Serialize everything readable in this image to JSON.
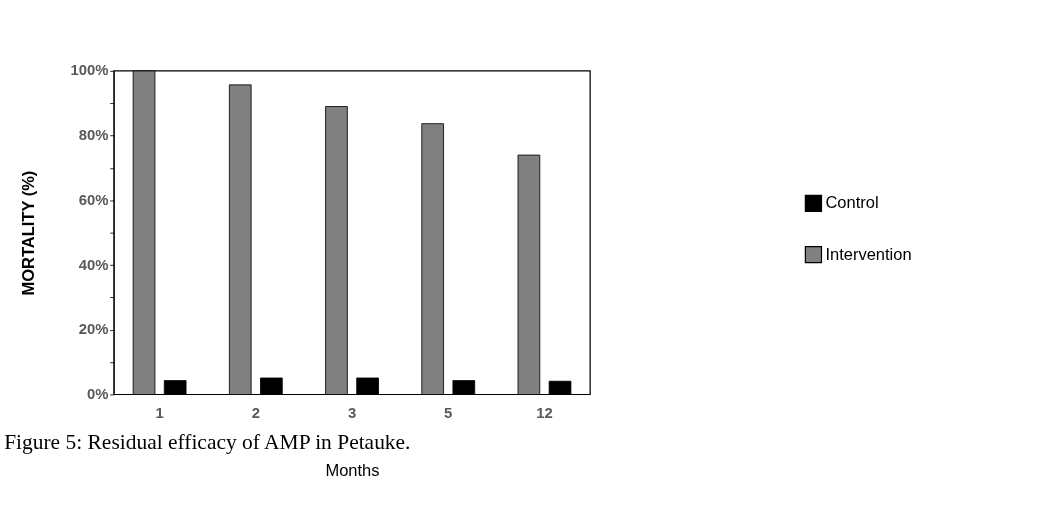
{
  "chart_data": {
    "type": "bar",
    "xlabel": "Months",
    "ylabel": "MORTALITY (%)",
    "categories": [
      "1",
      "2",
      "3",
      "5",
      "12"
    ],
    "series": [
      {
        "name": "Intervention",
        "color": "#808080",
        "values": [
          100,
          95.7,
          89.0,
          83.7,
          74.0
        ]
      },
      {
        "name": "Control",
        "color": "#000000",
        "values": [
          4.3,
          5.1,
          5.1,
          4.3,
          4.1
        ]
      }
    ],
    "ylim": [
      0,
      100
    ],
    "yticks": [
      {
        "value": 0,
        "label": "0%"
      },
      {
        "value": 10,
        "label": null
      },
      {
        "value": 20,
        "label": "20%"
      },
      {
        "value": 30,
        "label": null
      },
      {
        "value": 40,
        "label": "40%"
      },
      {
        "value": 50,
        "label": null
      },
      {
        "value": 60,
        "label": "60%"
      },
      {
        "value": 70,
        "label": null
      },
      {
        "value": 80,
        "label": "80%"
      },
      {
        "value": 90,
        "label": null
      },
      {
        "value": 100,
        "label": "100%"
      }
    ],
    "legend": "right",
    "grid": false,
    "annotations": [
      "Figure 5: Residual efficacy of AMP in Petauke."
    ]
  }
}
